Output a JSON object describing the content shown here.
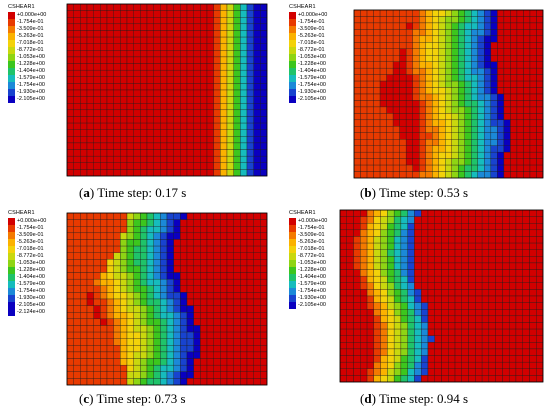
{
  "legend_title": "CSHEAR1",
  "colors": [
    "#d20000",
    "#e83a00",
    "#f47a00",
    "#fbb200",
    "#f3d20a",
    "#c9d80e",
    "#8ed514",
    "#3cc61e",
    "#1fc36a",
    "#16bcbd",
    "#1b89d8",
    "#1843cf",
    "#0a00c0"
  ],
  "panels": [
    {
      "letter": "a",
      "caption": "Time step: 0.17 s",
      "legend": [
        "+0.000e+00",
        "-1.754e-01",
        "-3.509e-01",
        "-5.263e-01",
        "-7.018e-01",
        "-8.772e-01",
        "-1.053e+00",
        "-1.228e+00",
        "-1.404e+00",
        "-1.579e+00",
        "-1.754e+00",
        "-1.930e+00",
        "-2.105e+00"
      ]
    },
    {
      "letter": "b",
      "caption": "Time step: 0.53 s",
      "legend": [
        "+0.000e+00",
        "-1.754e-01",
        "-3.509e-01",
        "-5.263e-01",
        "-7.018e-01",
        "-8.772e-01",
        "-1.053e+00",
        "-1.228e+00",
        "-1.404e+00",
        "-1.579e+00",
        "-1.754e+00",
        "-1.930e+00",
        "-2.105e+00"
      ]
    },
    {
      "letter": "c",
      "caption": "Time step: 0.73 s",
      "legend": [
        "+0.000e+00",
        "-1.754e-01",
        "-3.509e-01",
        "-5.263e-01",
        "-7.018e-01",
        "-8.772e-01",
        "-1.053e+00",
        "-1.228e+00",
        "-1.404e+00",
        "-1.579e+00",
        "-1.754e+00",
        "-1.930e+00",
        "-2.105e+00",
        "-2.124e+00"
      ]
    },
    {
      "letter": "d",
      "caption": "Time step: 0.94 s",
      "legend": [
        "+0.000e+00",
        "-1.754e-01",
        "-3.509e-01",
        "-5.263e-01",
        "-7.018e-01",
        "-8.772e-01",
        "-1.053e+00",
        "-1.228e+00",
        "-1.404e+00",
        "-1.579e+00",
        "-1.754e+00",
        "-1.930e+00",
        "-2.105e+00"
      ]
    }
  ]
}
